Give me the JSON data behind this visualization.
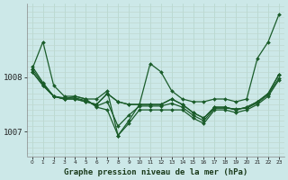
{
  "xlabel": "Graphe pression niveau de la mer (hPa)",
  "bg_color": "#cce8e8",
  "grid_color_v": "#b8d8d0",
  "grid_color_h": "#c0d8d0",
  "line_color": "#1a5c2a",
  "x_ticks": [
    0,
    1,
    2,
    3,
    4,
    5,
    6,
    7,
    8,
    9,
    10,
    11,
    12,
    13,
    14,
    15,
    16,
    17,
    18,
    19,
    20,
    21,
    22,
    23
  ],
  "y_ticks": [
    1007,
    1008
  ],
  "ylim": [
    1006.55,
    1009.35
  ],
  "xlim": [
    -0.5,
    23.5
  ],
  "lines": [
    [
      1008.15,
      1008.65,
      1007.85,
      1007.65,
      1007.65,
      1007.6,
      1007.6,
      1007.75,
      1006.93,
      1007.2,
      1007.5,
      1008.25,
      1008.1,
      1007.75,
      1007.6,
      1007.55,
      1007.55,
      1007.6,
      1007.6,
      1007.55,
      1007.6,
      1008.35,
      1008.65,
      1009.15
    ],
    [
      1008.1,
      1007.85,
      1007.65,
      1007.6,
      1007.6,
      1007.55,
      1007.5,
      1007.7,
      1007.55,
      1007.5,
      1007.5,
      1007.5,
      1007.5,
      1007.6,
      1007.5,
      1007.35,
      1007.25,
      1007.45,
      1007.45,
      1007.4,
      1007.45,
      1007.55,
      1007.7,
      1008.05
    ],
    [
      1008.1,
      1007.85,
      1007.65,
      1007.6,
      1007.6,
      1007.55,
      1007.5,
      1007.7,
      1007.55,
      1007.5,
      1007.5,
      1007.5,
      1007.5,
      1007.6,
      1007.5,
      1007.35,
      1007.25,
      1007.45,
      1007.45,
      1007.4,
      1007.45,
      1007.55,
      1007.7,
      1008.05
    ],
    [
      1008.2,
      1007.9,
      1007.65,
      1007.6,
      1007.65,
      1007.6,
      1007.45,
      1007.4,
      1006.93,
      1007.15,
      1007.4,
      1007.4,
      1007.4,
      1007.4,
      1007.4,
      1007.25,
      1007.15,
      1007.4,
      1007.4,
      1007.35,
      1007.4,
      1007.5,
      1007.65,
      1007.95
    ],
    [
      1008.15,
      1007.88,
      1007.65,
      1007.62,
      1007.62,
      1007.57,
      1007.47,
      1007.55,
      1007.1,
      1007.3,
      1007.47,
      1007.47,
      1007.47,
      1007.52,
      1007.45,
      1007.3,
      1007.2,
      1007.43,
      1007.43,
      1007.42,
      1007.43,
      1007.53,
      1007.68,
      1007.98
    ]
  ],
  "figsize": [
    3.2,
    2.0
  ],
  "dpi": 100
}
